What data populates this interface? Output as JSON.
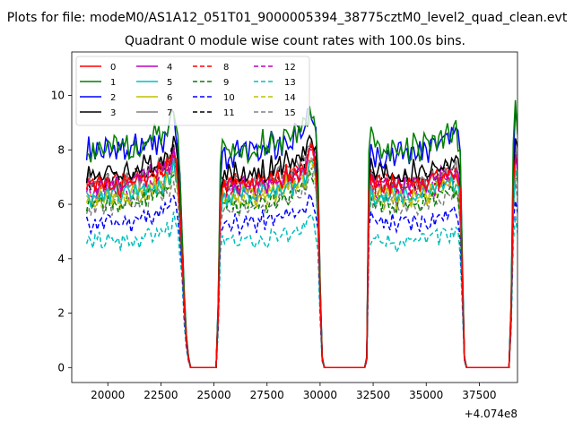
{
  "chart_data": {
    "type": "line",
    "suptitle": "Plots for file: modeM0/AS1A12_051T01_9000005394_38775cztM0_level2_quad_clean.evt",
    "title": "Quadrant 0 module wise count rates with 100.0s bins.",
    "xlabel": "",
    "ylabel": "",
    "x_offset_label": "+4.074e8",
    "xlim": [
      18300,
      39300
    ],
    "ylim": [
      -0.55,
      11.6
    ],
    "xticks": [
      20000,
      22500,
      25000,
      27500,
      30000,
      32500,
      35000,
      37500
    ],
    "yticks": [
      0,
      2,
      4,
      6,
      8,
      10
    ],
    "grid": false,
    "legend_location": "upper-left",
    "legend_columns": 4,
    "x_start": 19000,
    "x_step": 100,
    "segments": [
      [
        19000,
        23900
      ],
      [
        25100,
        29900
      ],
      [
        31300,
        36200
      ],
      [
        37700,
        38800
      ]
    ],
    "profile": [
      1.0,
      1.02,
      0.98,
      1.01,
      1.0,
      0.99,
      1.03,
      1.0,
      0.98,
      1.01,
      1.02,
      1.0,
      0.99,
      1.01,
      1.03,
      1.0,
      0.98,
      1.02,
      1.01,
      1.04,
      1.0,
      0.99,
      1.02,
      1.05,
      1.03,
      1.01,
      1.04,
      1.06,
      1.02,
      1.05,
      1.08,
      1.04,
      1.07,
      1.05,
      1.09,
      1.08,
      1.06,
      1.1,
      1.12,
      1.09,
      1.15,
      1.18,
      1.12,
      1.05,
      0.85,
      0.65,
      0.35,
      0.15,
      0.05,
      0.0,
      0.0,
      0.0,
      0.0,
      0.0,
      0.0,
      0.0,
      0.0,
      0.0,
      0.0,
      0.0,
      0.0,
      0.0,
      0.3,
      0.9,
      1.0,
      1.02,
      0.98,
      1.01,
      1.0,
      0.99,
      1.03,
      1.0,
      0.98,
      1.01,
      1.02,
      1.0,
      0.99,
      1.01,
      1.03,
      1.0,
      0.98,
      1.02,
      1.01,
      1.04,
      1.0,
      0.99,
      1.02,
      1.05,
      1.03,
      1.01,
      1.04,
      1.06,
      1.02,
      1.05,
      1.08,
      1.04,
      1.07,
      1.05,
      1.09,
      1.08,
      1.06,
      1.1,
      1.12,
      1.09,
      1.15,
      1.18,
      1.2,
      1.16,
      1.1,
      0.9,
      0.4,
      0.05,
      0.0,
      0.0,
      0.0,
      0.0,
      0.0,
      0.0,
      0.0,
      0.0,
      0.0,
      0.0,
      0.0,
      0.0,
      0.0,
      0.0,
      0.0,
      0.0,
      0.0,
      0.0,
      0.0,
      0.0,
      0.05,
      0.95,
      1.05,
      1.02,
      0.99,
      1.01,
      1.03,
      1.0,
      0.98,
      1.02,
      1.01,
      0.99,
      1.03,
      1.0,
      0.98,
      1.01,
      1.0,
      0.99,
      1.02,
      1.01,
      1.0,
      0.98,
      1.03,
      1.01,
      1.0,
      0.99,
      1.02,
      1.04,
      1.01,
      1.0,
      1.03,
      1.05,
      1.02,
      1.04,
      1.03,
      1.06,
      1.05,
      1.04,
      1.07,
      1.06,
      1.08,
      1.07,
      1.1,
      1.05,
      0.95,
      0.5,
      0.05,
      0.0,
      0.0,
      0.0,
      0.0,
      0.0,
      0.0,
      0.0,
      0.0,
      0.0,
      0.0,
      0.0,
      0.0,
      0.0,
      0.0,
      0.0,
      0.0,
      0.0,
      0.0,
      0.0,
      0.0,
      0.0,
      0.3,
      1.0,
      1.18,
      1.1,
      1.02,
      1.0,
      0.98,
      1.02,
      1.0,
      1.05,
      0.99,
      1.04,
      0.95,
      0.8,
      0.5,
      0.35
    ],
    "series": [
      {
        "name": "0",
        "color": "#ff0000",
        "dash": false,
        "mean": 6.7,
        "noise": 0.3,
        "seed": 1
      },
      {
        "name": "1",
        "color": "#008000",
        "dash": false,
        "mean": 8.0,
        "noise": 0.45,
        "seed": 2
      },
      {
        "name": "2",
        "color": "#0000ff",
        "dash": false,
        "mean": 7.9,
        "noise": 0.5,
        "seed": 3
      },
      {
        "name": "3",
        "color": "#000000",
        "dash": false,
        "mean": 7.1,
        "noise": 0.35,
        "seed": 4
      },
      {
        "name": "4",
        "color": "#c000c0",
        "dash": false,
        "mean": 6.7,
        "noise": 0.3,
        "seed": 5
      },
      {
        "name": "5",
        "color": "#00bfbf",
        "dash": false,
        "mean": 6.3,
        "noise": 0.3,
        "seed": 6
      },
      {
        "name": "6",
        "color": "#bfbf00",
        "dash": false,
        "mean": 6.3,
        "noise": 0.3,
        "seed": 7
      },
      {
        "name": "7",
        "color": "#808080",
        "dash": false,
        "mean": 6.8,
        "noise": 0.3,
        "seed": 8
      },
      {
        "name": "8",
        "color": "#ff0000",
        "dash": true,
        "mean": 6.7,
        "noise": 0.3,
        "seed": 9
      },
      {
        "name": "9",
        "color": "#008000",
        "dash": true,
        "mean": 6.0,
        "noise": 0.3,
        "seed": 10
      },
      {
        "name": "10",
        "color": "#0000ff",
        "dash": true,
        "mean": 5.3,
        "noise": 0.3,
        "seed": 11
      },
      {
        "name": "11",
        "color": "#000000",
        "dash": true,
        "mean": 6.8,
        "noise": 0.3,
        "seed": 12
      },
      {
        "name": "12",
        "color": "#c000c0",
        "dash": true,
        "mean": 6.4,
        "noise": 0.3,
        "seed": 13
      },
      {
        "name": "13",
        "color": "#00bfbf",
        "dash": true,
        "mean": 4.6,
        "noise": 0.3,
        "seed": 14
      },
      {
        "name": "14",
        "color": "#bfbf00",
        "dash": true,
        "mean": 6.2,
        "noise": 0.3,
        "seed": 15
      },
      {
        "name": "15",
        "color": "#808080",
        "dash": true,
        "mean": 5.9,
        "noise": 0.3,
        "seed": 16
      }
    ]
  }
}
